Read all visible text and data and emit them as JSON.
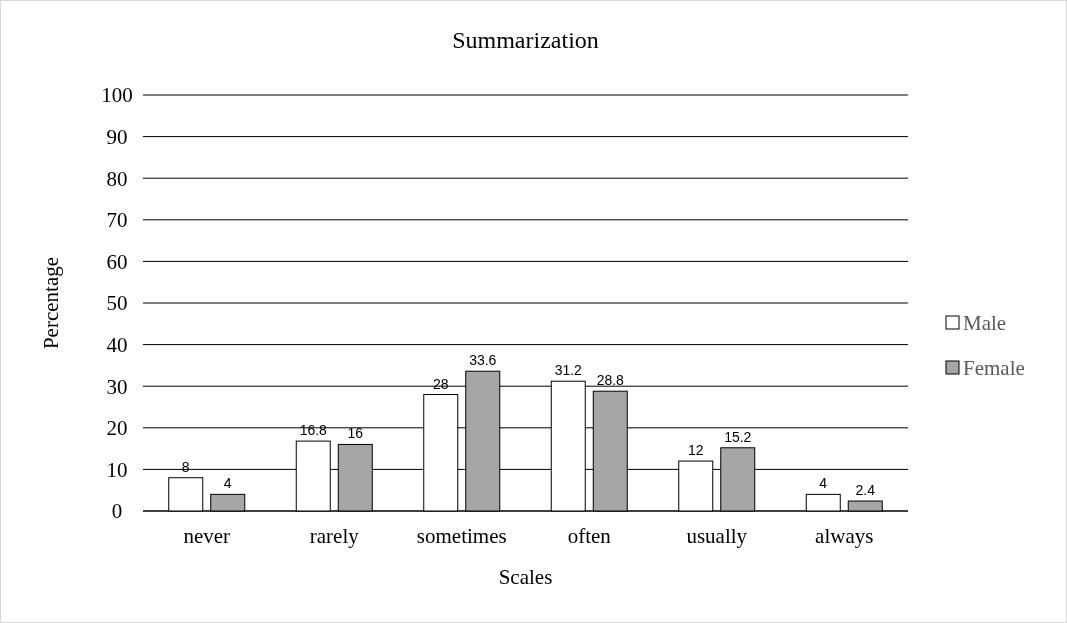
{
  "chart_data": {
    "type": "bar",
    "title": "Summarization",
    "xlabel": "Scales",
    "ylabel": "Percentage",
    "categories": [
      "never",
      "rarely",
      "sometimes",
      "often",
      "usually",
      "always"
    ],
    "series": [
      {
        "name": "Male",
        "color": "#ffffff",
        "values": [
          8,
          16.8,
          28,
          31.2,
          12,
          4
        ]
      },
      {
        "name": "Female",
        "color": "#a6a6a6",
        "values": [
          4,
          16,
          33.6,
          28.8,
          15.2,
          2.4
        ]
      }
    ],
    "ylim": [
      0,
      100
    ],
    "yticks": [
      0,
      10,
      20,
      30,
      40,
      50,
      60,
      70,
      80,
      90,
      100
    ],
    "grid": "y",
    "legend": "right",
    "data_labels": true
  }
}
